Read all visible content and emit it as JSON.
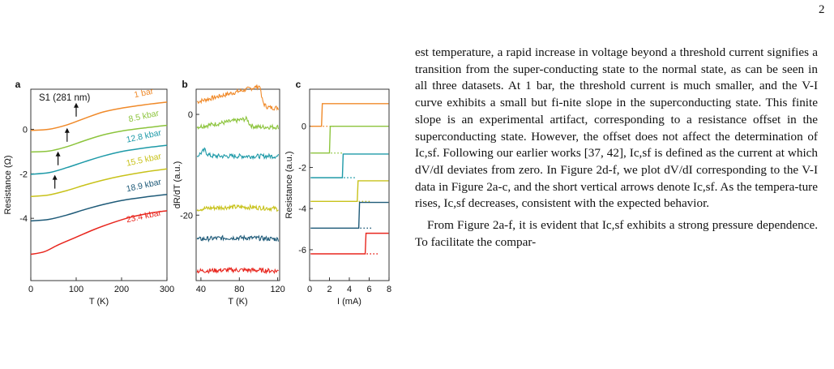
{
  "page_number": "2",
  "text": {
    "paragraph1": "est temperature, a rapid increase in voltage beyond a threshold current signifies a transition from the super-conducting state to the normal state, as can be seen in all three datasets. At 1 bar, the threshold current is much smaller, and the V-I curve exhibits a small but fi-nite slope in the superconducting state. This finite slope is an experimental artifact, corresponding to a resistance offset in the superconducting state. However, the offset does not affect the determination of Ic,sf. Following our earlier works [37, 42], Ic,sf is defined as the current at which dV/dI deviates from zero. In Figure 2d-f, we plot dV/dI corresponding to the V-I data in Figure 2a-c, and the short vertical arrows denote Ic,sf. As the tempera-ture rises, Ic,sf decreases, consistent with the expected behavior.",
    "paragraph2": "From Figure 2a-f, it is evident that Ic,sf exhibits a strong pressure dependence. To facilitate the compar-"
  },
  "colors": {
    "1 bar": "#f08a2a",
    "8.5 kbar": "#8cc43c",
    "12.8 kbar": "#1e9aa8",
    "15.5 kbar": "#c8c21a",
    "18.9 kbar": "#1e5a78",
    "23.4 kbar": "#e8261e"
  },
  "chart_data": [
    {
      "panel": "a",
      "type": "line",
      "sample_label": "S1  (281 nm)",
      "xlabel": "T (K)",
      "ylabel": "Resistance (Ω)",
      "xlim": [
        0,
        300
      ],
      "ylim": [
        -6.8,
        1.8
      ],
      "xticks": [
        "0",
        "100",
        "200",
        "300"
      ],
      "yticks": [
        "0",
        "-2",
        "-4"
      ],
      "series": [
        {
          "name": "1 bar",
          "x": [
            0,
            40,
            80,
            120,
            160,
            200,
            250,
            300
          ],
          "y": [
            -0.05,
            0.0,
            0.2,
            0.5,
            0.78,
            0.95,
            1.1,
            1.22
          ]
        },
        {
          "name": "8.5 kbar",
          "x": [
            0,
            40,
            80,
            120,
            160,
            200,
            250,
            300
          ],
          "y": [
            -1.02,
            -0.98,
            -0.78,
            -0.5,
            -0.25,
            -0.08,
            0.06,
            0.18
          ]
        },
        {
          "name": "12.8 kbar",
          "x": [
            0,
            40,
            80,
            120,
            160,
            200,
            250,
            300
          ],
          "y": [
            -2.02,
            -1.95,
            -1.72,
            -1.45,
            -1.2,
            -1.0,
            -0.84,
            -0.72
          ]
        },
        {
          "name": "15.5 kbar",
          "x": [
            0,
            40,
            80,
            120,
            160,
            200,
            250,
            300
          ],
          "y": [
            -3.02,
            -2.95,
            -2.75,
            -2.5,
            -2.28,
            -2.1,
            -1.92,
            -1.78
          ]
        },
        {
          "name": "18.9 kbar",
          "x": [
            0,
            40,
            80,
            120,
            160,
            200,
            250,
            300
          ],
          "y": [
            -4.12,
            -4.05,
            -3.85,
            -3.6,
            -3.38,
            -3.2,
            -3.05,
            -2.93
          ]
        },
        {
          "name": "23.4 kbar",
          "x": [
            0,
            30,
            60,
            100,
            140,
            180,
            220,
            260,
            300
          ],
          "y": [
            -5.62,
            -5.5,
            -5.2,
            -4.85,
            -4.5,
            -4.2,
            -3.95,
            -3.78,
            -3.66
          ]
        }
      ],
      "arrows_x": [
        100,
        80,
        60,
        53
      ]
    },
    {
      "panel": "b",
      "type": "line",
      "xlabel": "T (K)",
      "ylabel": "dR/dT (a.u.)",
      "xlim": [
        35,
        122
      ],
      "ylim": [
        -33,
        5
      ],
      "xticks": [
        "40",
        "80",
        "120"
      ],
      "yticks": [
        "0",
        "-20"
      ],
      "series_names": [
        "1 bar",
        "8.5 kbar",
        "12.8 kbar",
        "15.5 kbar",
        "18.9 kbar",
        "23.4 kbar"
      ],
      "offsets": [
        2.5,
        -2.5,
        -8.3,
        -18.8,
        -24.8,
        -31.1
      ],
      "peak_x": [
        102,
        88,
        44,
        0,
        0,
        0
      ],
      "peak_height": [
        3.5,
        1.8,
        1.4,
        0.4,
        0.3,
        0.2
      ]
    },
    {
      "panel": "c",
      "type": "line",
      "xlabel": "I (mA)",
      "ylabel": "Resistance (a.u.)",
      "xlim": [
        0,
        8
      ],
      "ylim": [
        -7.5,
        1.8
      ],
      "xticks": [
        "0",
        "2",
        "4",
        "6",
        "8"
      ],
      "yticks": [
        "0",
        "-2",
        "-4",
        "-6"
      ],
      "series": [
        {
          "name": "1 bar",
          "low": 0.0,
          "high": 1.1,
          "ic": 1.2
        },
        {
          "name": "8.5 kbar",
          "low": -1.3,
          "high": 0.0,
          "ic": 2.0
        },
        {
          "name": "12.8 kbar",
          "low": -2.5,
          "high": -1.35,
          "ic": 3.3
        },
        {
          "name": "15.5 kbar",
          "low": -3.65,
          "high": -2.65,
          "ic": 4.8
        },
        {
          "name": "18.9 kbar",
          "low": -4.95,
          "high": -3.7,
          "ic": 4.95
        },
        {
          "name": "23.4 kbar",
          "low": -6.2,
          "high": -5.2,
          "ic": 5.6
        }
      ]
    }
  ]
}
